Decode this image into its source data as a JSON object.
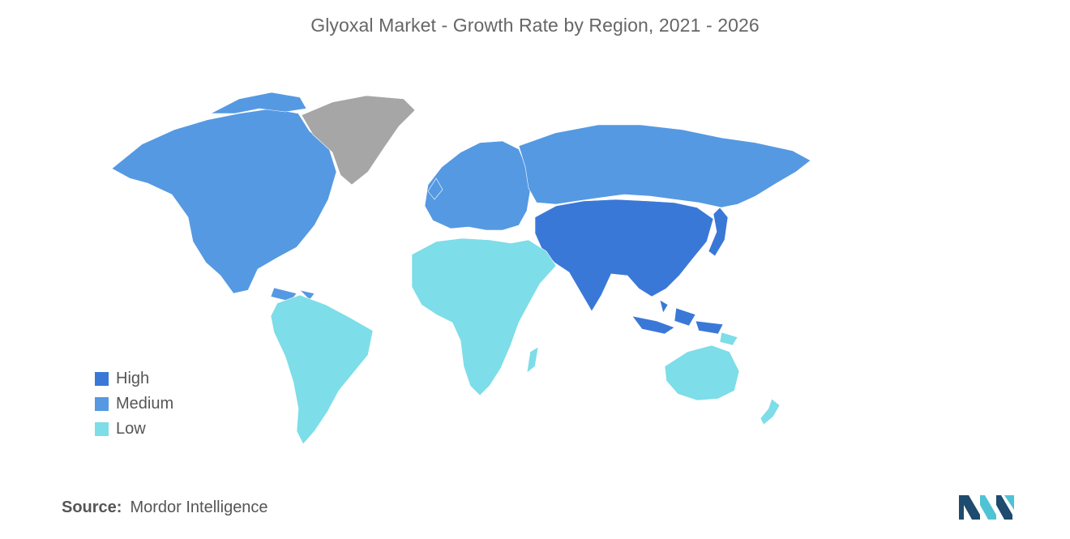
{
  "title": "Glyoxal Market - Growth Rate by Region, 2021 - 2026",
  "colors": {
    "high": "#3a78d8",
    "medium": "#5599e2",
    "low": "#7ddde8",
    "no_data": "#a6a6a6",
    "logo_dark": "#1e4b6e",
    "logo_light": "#4fc3d4"
  },
  "legend": [
    {
      "label": "High",
      "level": "high"
    },
    {
      "label": "Medium",
      "level": "medium"
    },
    {
      "label": "Low",
      "level": "low"
    }
  ],
  "regions": [
    {
      "name": "North America",
      "level": "medium"
    },
    {
      "name": "Greenland",
      "level": "no_data"
    },
    {
      "name": "Europe",
      "level": "medium"
    },
    {
      "name": "Russia",
      "level": "medium"
    },
    {
      "name": "Asia-Pacific",
      "level": "high"
    },
    {
      "name": "Middle East and Africa",
      "level": "low"
    },
    {
      "name": "South America",
      "level": "low"
    },
    {
      "name": "Australia and New Zealand",
      "level": "low"
    }
  ],
  "source": {
    "label": "Source:",
    "value": "Mordor Intelligence"
  },
  "logo": "mordor-intelligence-logo"
}
